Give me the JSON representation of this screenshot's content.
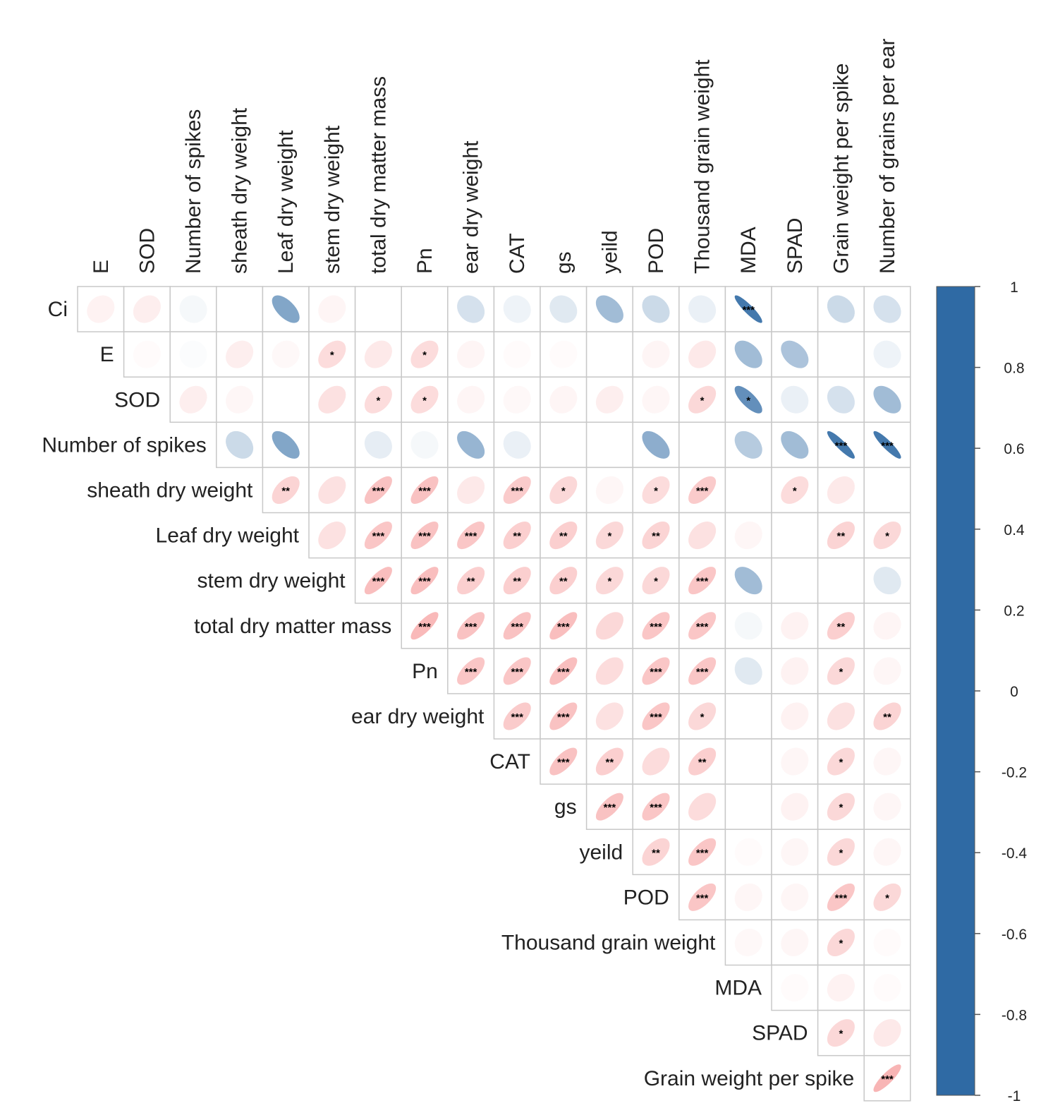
{
  "chart_data": {
    "type": "heatmap",
    "subtype": "correlation-ellipse-upper-triangle",
    "row_variables": [
      "Ci",
      "E",
      "SOD",
      "Number of spikes",
      "sheath dry weight",
      "Leaf dry weight",
      "stem dry weight",
      "total dry matter mass",
      "Pn",
      "ear dry weight",
      "CAT",
      "gs",
      "yeild",
      "POD",
      "Thousand grain weight",
      "MDA",
      "SPAD",
      "Grain weight per spike"
    ],
    "column_variables": [
      "E",
      "SOD",
      "Number of spikes",
      "sheath dry weight",
      "Leaf dry weight",
      "stem dry weight",
      "total dry matter mass",
      "Pn",
      "ear dry weight",
      "CAT",
      "gs",
      "yeild",
      "POD",
      "Thousand grain weight",
      "MDA",
      "SPAD",
      "Grain weight per spike",
      "Number of grains per ear"
    ],
    "matrix": [
      [
        0.15,
        0.2,
        -0.05,
        0,
        -0.6,
        0.12,
        0,
        0,
        -0.2,
        -0.08,
        -0.15,
        -0.45,
        -0.25,
        -0.1,
        -0.9,
        0,
        -0.25,
        -0.2
      ],
      [
        null,
        0.05,
        -0.02,
        0.2,
        0.08,
        0.4,
        0.25,
        0.4,
        0.12,
        0.05,
        0.05,
        0,
        0.12,
        0.25,
        -0.45,
        -0.4,
        0,
        -0.08
      ],
      [
        null,
        null,
        0.2,
        0.1,
        0,
        0.35,
        0.4,
        0.4,
        0.12,
        0.08,
        0.12,
        0.2,
        0.1,
        0.45,
        -0.75,
        -0.1,
        -0.2,
        -0.45
      ],
      [
        null,
        null,
        null,
        -0.25,
        -0.6,
        0,
        -0.12,
        -0.05,
        -0.5,
        -0.1,
        0,
        0,
        -0.55,
        0,
        -0.35,
        -0.45,
        -0.9,
        -0.9
      ],
      [
        null,
        null,
        null,
        null,
        0.5,
        0.35,
        0.7,
        0.7,
        0.25,
        0.6,
        0.45,
        0.1,
        0.4,
        0.6,
        0,
        0.4,
        0.25,
        0
      ],
      [
        null,
        null,
        null,
        null,
        null,
        0.35,
        0.65,
        0.7,
        0.65,
        0.55,
        0.55,
        0.45,
        0.5,
        0.35,
        0.1,
        0,
        0.5,
        0.45
      ],
      [
        null,
        null,
        null,
        null,
        null,
        null,
        0.75,
        0.75,
        0.55,
        0.55,
        0.55,
        0.45,
        0.45,
        0.65,
        -0.45,
        0,
        0,
        -0.15
      ],
      [
        null,
        null,
        null,
        null,
        null,
        null,
        null,
        0.8,
        0.7,
        0.7,
        0.75,
        0.45,
        0.65,
        0.65,
        -0.05,
        0.15,
        0.55,
        0.12
      ],
      [
        null,
        null,
        null,
        null,
        null,
        null,
        null,
        null,
        0.65,
        0.65,
        0.75,
        0.4,
        0.65,
        0.65,
        -0.15,
        0.15,
        0.45,
        0.1
      ],
      [
        null,
        null,
        null,
        null,
        null,
        null,
        null,
        null,
        null,
        0.6,
        0.7,
        0.35,
        0.65,
        0.45,
        0,
        0.15,
        0.35,
        0.5
      ],
      [
        null,
        null,
        null,
        null,
        null,
        null,
        null,
        null,
        null,
        null,
        0.7,
        0.55,
        0.4,
        0.55,
        0,
        0.1,
        0.45,
        0.1
      ],
      [
        null,
        null,
        null,
        null,
        null,
        null,
        null,
        null,
        null,
        null,
        null,
        0.7,
        0.65,
        0.4,
        0,
        0.15,
        0.45,
        0.1
      ],
      [
        null,
        null,
        null,
        null,
        null,
        null,
        null,
        null,
        null,
        null,
        null,
        null,
        0.5,
        0.65,
        0.05,
        0.1,
        0.45,
        0.1
      ],
      [
        null,
        null,
        null,
        null,
        null,
        null,
        null,
        null,
        null,
        null,
        null,
        null,
        null,
        0.65,
        0.1,
        0.1,
        0.65,
        0.45
      ],
      [
        null,
        null,
        null,
        null,
        null,
        null,
        null,
        null,
        null,
        null,
        null,
        null,
        null,
        null,
        0.08,
        0.1,
        0.45,
        0.05
      ],
      [
        null,
        null,
        null,
        null,
        null,
        null,
        null,
        null,
        null,
        null,
        null,
        null,
        null,
        null,
        null,
        0.05,
        0.15,
        0.05
      ],
      [
        null,
        null,
        null,
        null,
        null,
        null,
        null,
        null,
        null,
        null,
        null,
        null,
        null,
        null,
        null,
        null,
        0.45,
        0.25
      ],
      [
        null,
        null,
        null,
        null,
        null,
        null,
        null,
        null,
        null,
        null,
        null,
        null,
        null,
        null,
        null,
        null,
        null,
        0.85
      ]
    ],
    "significance": [
      [
        "",
        "",
        "",
        "",
        "",
        "",
        "",
        "",
        "",
        "",
        "",
        "",
        "",
        "",
        "***",
        "",
        "",
        ""
      ],
      [
        null,
        "",
        "",
        "",
        "",
        "*",
        "",
        "*",
        "",
        "",
        "",
        "",
        "",
        "",
        "",
        "",
        "",
        ""
      ],
      [
        null,
        null,
        "",
        "",
        "",
        "",
        "*",
        "*",
        "",
        "",
        "",
        "",
        "",
        "*",
        "*",
        "",
        "",
        ""
      ],
      [
        null,
        null,
        null,
        "",
        "",
        "",
        "",
        "",
        "",
        "",
        "",
        "",
        "",
        "",
        "",
        "",
        "***",
        "***"
      ],
      [
        null,
        null,
        null,
        null,
        "**",
        "",
        "***",
        "***",
        "",
        "***",
        "*",
        "",
        "*",
        "***",
        "",
        "*",
        "",
        ""
      ],
      [
        null,
        null,
        null,
        null,
        null,
        "",
        "***",
        "***",
        "***",
        "**",
        "**",
        "*",
        "**",
        "",
        "",
        "",
        "**",
        "*"
      ],
      [
        null,
        null,
        null,
        null,
        null,
        null,
        "***",
        "***",
        "**",
        "**",
        "**",
        "*",
        "*",
        "***",
        "",
        "",
        "",
        ""
      ],
      [
        null,
        null,
        null,
        null,
        null,
        null,
        null,
        "***",
        "***",
        "***",
        "***",
        "",
        "***",
        "***",
        "",
        "",
        "**",
        ""
      ],
      [
        null,
        null,
        null,
        null,
        null,
        null,
        null,
        null,
        "***",
        "***",
        "***",
        "",
        "***",
        "***",
        "",
        "",
        "*",
        ""
      ],
      [
        null,
        null,
        null,
        null,
        null,
        null,
        null,
        null,
        null,
        "***",
        "***",
        "",
        "***",
        "*",
        "",
        "",
        "",
        "**"
      ],
      [
        null,
        null,
        null,
        null,
        null,
        null,
        null,
        null,
        null,
        null,
        "***",
        "**",
        "",
        "**",
        "",
        "",
        "*",
        ""
      ],
      [
        null,
        null,
        null,
        null,
        null,
        null,
        null,
        null,
        null,
        null,
        null,
        "***",
        "***",
        "",
        "",
        "",
        "*",
        ""
      ],
      [
        null,
        null,
        null,
        null,
        null,
        null,
        null,
        null,
        null,
        null,
        null,
        null,
        "**",
        "***",
        "",
        "",
        "*",
        ""
      ],
      [
        null,
        null,
        null,
        null,
        null,
        null,
        null,
        null,
        null,
        null,
        null,
        null,
        null,
        "***",
        "",
        "",
        "***",
        "*"
      ],
      [
        null,
        null,
        null,
        null,
        null,
        null,
        null,
        null,
        null,
        null,
        null,
        null,
        null,
        null,
        "",
        "",
        "*",
        ""
      ],
      [
        null,
        null,
        null,
        null,
        null,
        null,
        null,
        null,
        null,
        null,
        null,
        null,
        null,
        null,
        null,
        "",
        "",
        ""
      ],
      [
        null,
        null,
        null,
        null,
        null,
        null,
        null,
        null,
        null,
        null,
        null,
        null,
        null,
        null,
        null,
        null,
        "*",
        ""
      ],
      [
        null,
        null,
        null,
        null,
        null,
        null,
        null,
        null,
        null,
        null,
        null,
        null,
        null,
        null,
        null,
        null,
        null,
        "***"
      ]
    ],
    "colorbar": {
      "range": [
        -1,
        1
      ],
      "ticks": [
        "1",
        "0.8",
        "0.6",
        "0.4",
        "0.2",
        "0",
        "-0.2",
        "-0.4",
        "-0.6",
        "-0.8",
        "-1"
      ],
      "colors": {
        "positive": "#f7a8a8",
        "zero": "#ffffff",
        "negative": "#2f6aa4"
      }
    }
  }
}
